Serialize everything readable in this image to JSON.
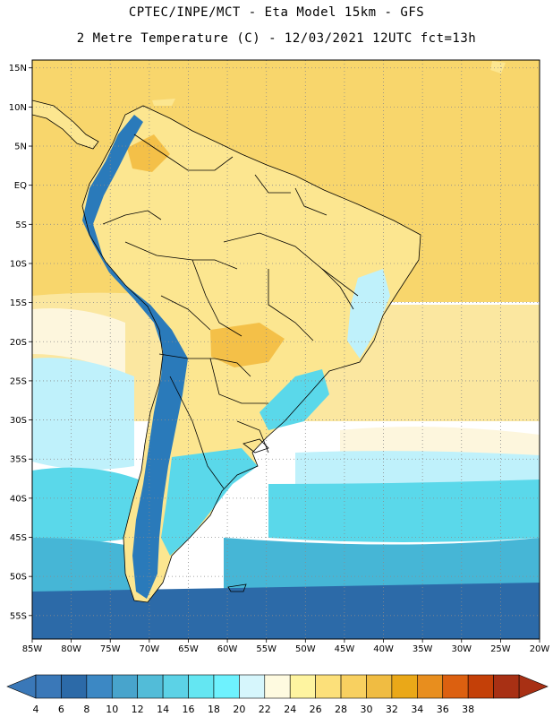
{
  "header": {
    "line1": "CPTEC/INPE/MCT -  Eta Model 15km - GFS",
    "line2": "2 Metre Temperature (C) - 12/03/2021 12UTC fct=13h"
  },
  "axes": {
    "lat_labels": [
      "15N",
      "10N",
      "5N",
      "EQ",
      "5S",
      "10S",
      "15S",
      "20S",
      "25S",
      "30S",
      "35S",
      "40S",
      "45S",
      "50S",
      "55S"
    ],
    "lon_labels": [
      "85W",
      "80W",
      "75W",
      "70W",
      "65W",
      "60W",
      "55W",
      "50W",
      "45W",
      "40W",
      "35W",
      "30W",
      "25W",
      "20W"
    ],
    "lon_range": [
      -85,
      -20
    ],
    "lat_range": [
      -58,
      16
    ],
    "grid": "dotted"
  },
  "colorbar": {
    "labels": [
      "4",
      "6",
      "8",
      "10",
      "12",
      "14",
      "16",
      "18",
      "20",
      "22",
      "24",
      "26",
      "28",
      "30",
      "32",
      "34",
      "36",
      "38"
    ],
    "colors": [
      "#3a78b8",
      "#2c6aa8",
      "#3c88c4",
      "#48a4cc",
      "#52bcd8",
      "#5cd2e6",
      "#64e6f2",
      "#6ef2fe",
      "#d6f6fc",
      "#fefae0",
      "#fef4a0",
      "#fce07a",
      "#f8d060",
      "#f0bc42",
      "#eaa818",
      "#e88e1e",
      "#dc6010",
      "#c44008",
      "#a83014"
    ],
    "arrow_left_color": "#3a78b8",
    "arrow_right_color": "#a83014"
  },
  "field_colors": {
    "ocean_tropical": "#f8d66c",
    "ocean_subtropical": "#fbe7a0",
    "ocean_mid": "#fdf6dd",
    "ocean_cool": "#bff1fb",
    "ocean_cold": "#5ad8ea",
    "ocean_colder": "#46b6d6",
    "ocean_polar": "#2c6aa8",
    "land_warm": "#fce690",
    "land_hot": "#f4c048",
    "andes": "#2a7aba"
  }
}
